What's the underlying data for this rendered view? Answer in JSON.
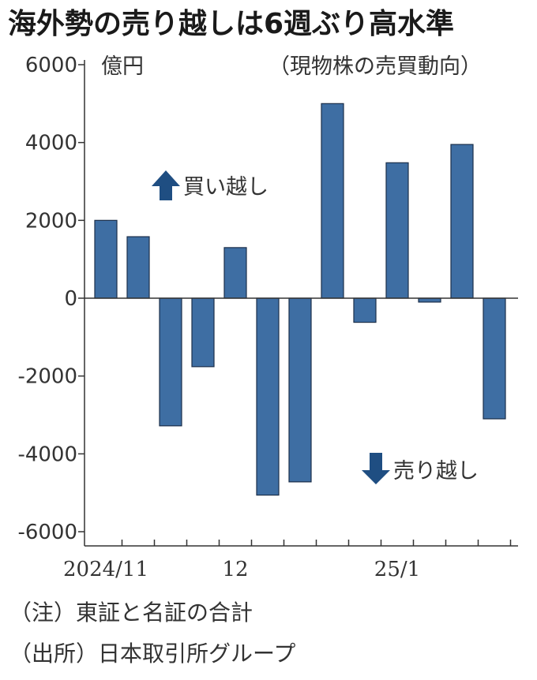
{
  "chart_data": {
    "type": "bar",
    "title": "海外勢の売り越しは6週ぶり高水準",
    "unit_label": "億円",
    "subtitle": "（現物株の売買動向）",
    "ylim": [
      -6000,
      6000
    ],
    "y_ticks": [
      "6000",
      "4000",
      "2000",
      "0",
      "-2000",
      "-4000",
      "-6000"
    ],
    "x_tick_labels": [
      "2024/11",
      "12",
      "25/1"
    ],
    "x_tick_label_bars": [
      0,
      4,
      9
    ],
    "values": [
      2000,
      1580,
      -3280,
      -1760,
      1300,
      -5060,
      -4720,
      5000,
      -620,
      3480,
      -100,
      3950,
      -3100
    ],
    "grid": false,
    "annotations": {
      "buy": "買い越し",
      "sell": "売り越し"
    },
    "notes": [
      "（注）東証と名証の合計",
      "（出所）日本取引所グループ"
    ],
    "colors": {
      "bar": "#3e6ea3",
      "arrow": "#1f4e82"
    }
  }
}
